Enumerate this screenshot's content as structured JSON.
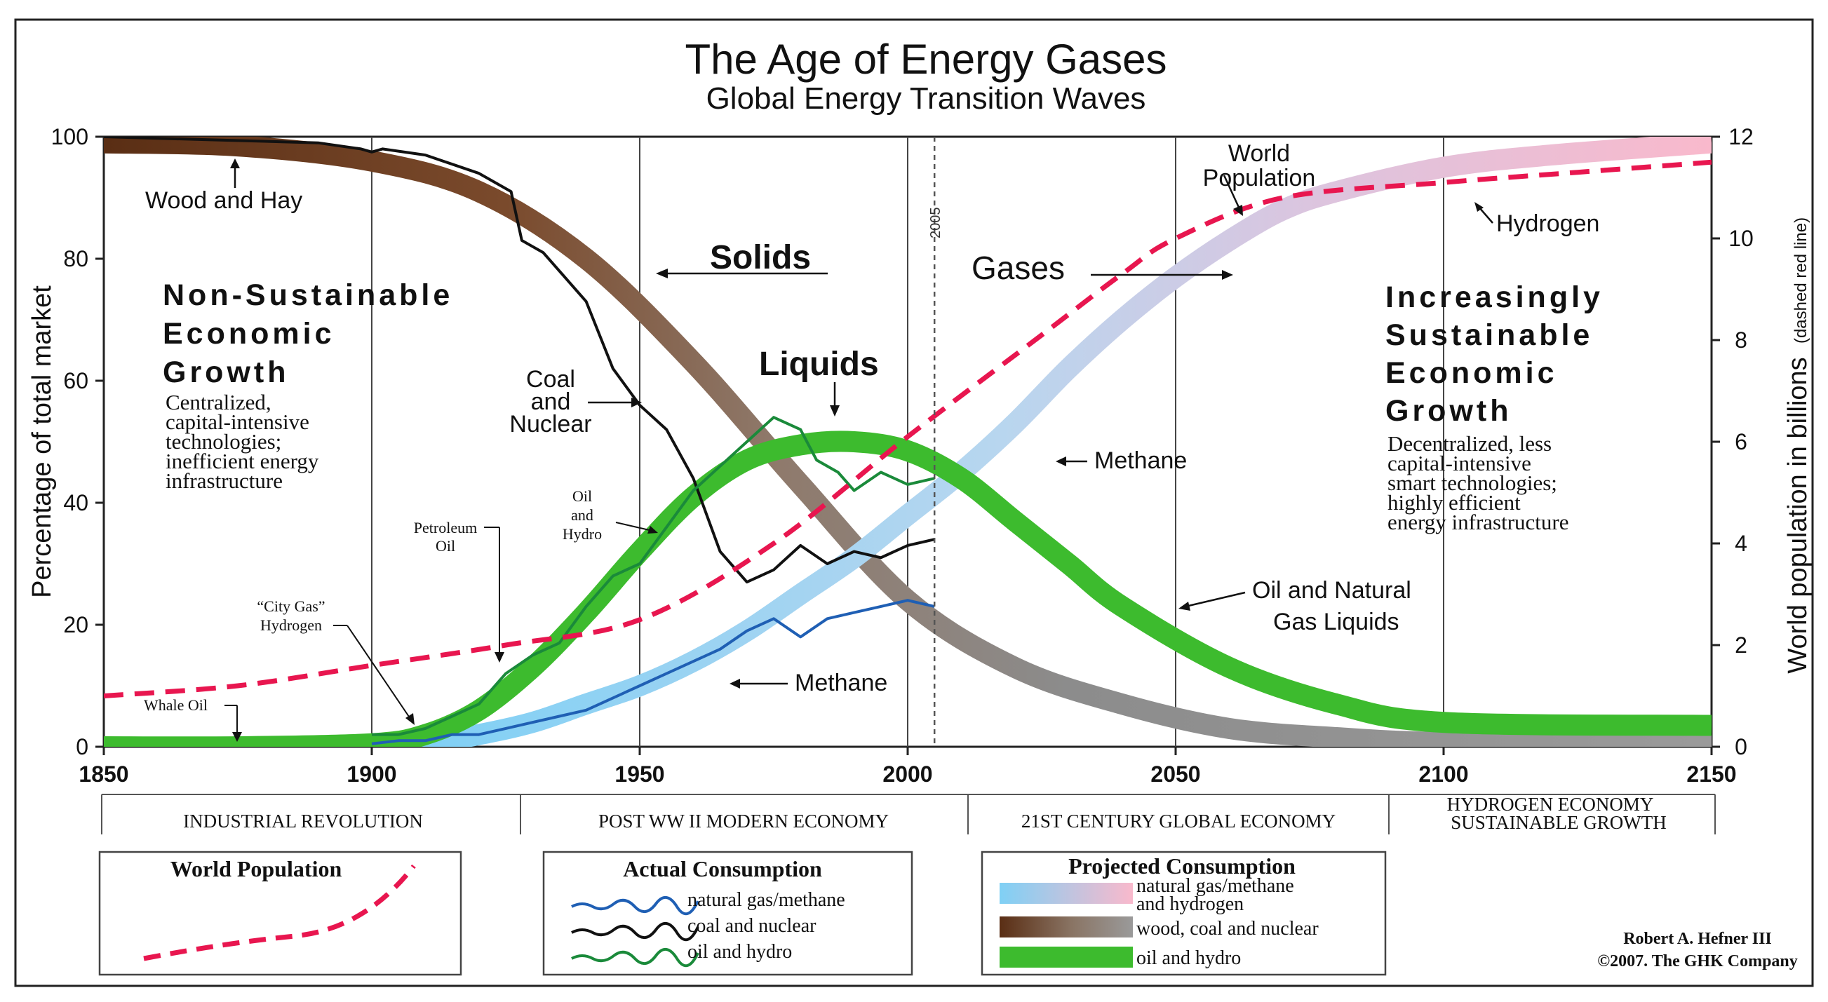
{
  "chart_data": {
    "type": "area",
    "title": "The Age of Energy Gases",
    "subtitle": "Global Energy Transition Waves",
    "ylabel": "Percentage of total market",
    "y2label_main": "World population in billions",
    "y2label_note": "(dashed red line)",
    "xlim": [
      1850,
      2150
    ],
    "ylim": [
      0,
      100
    ],
    "y2lim": [
      0,
      12
    ],
    "x_ticks": [
      "1850",
      "1900",
      "1950",
      "2000",
      "2050",
      "2100",
      "2150"
    ],
    "y_ticks": [
      "0",
      "20",
      "40",
      "60",
      "80",
      "100"
    ],
    "y2_ticks": [
      "0",
      "2",
      "4",
      "6",
      "8",
      "10",
      "12"
    ],
    "marker_year": 2005,
    "marker_label": "2005",
    "grid": true,
    "projected_series": [
      {
        "name": "wood, coal and nuclear",
        "x": [
          1850,
          1875,
          1900,
          1920,
          1940,
          1960,
          1980,
          2000,
          2020,
          2040,
          2060,
          2080,
          2100,
          2150
        ],
        "values": [
          99,
          98.5,
          96,
          91,
          80,
          63,
          43,
          24,
          13,
          7,
          3,
          1.5,
          0.7,
          0.2
        ]
      },
      {
        "name": "oil and hydro",
        "x": [
          1850,
          1875,
          1900,
          1910,
          1920,
          1930,
          1940,
          1950,
          1960,
          1970,
          1980,
          1990,
          2000,
          2010,
          2020,
          2030,
          2040,
          2060,
          2080,
          2100,
          2150
        ],
        "values": [
          0,
          0,
          0.5,
          2,
          6,
          13,
          22,
          32,
          41,
          47,
          49.5,
          50,
          48.5,
          44,
          37,
          30,
          23,
          13,
          7,
          4,
          3.5
        ]
      },
      {
        "name": "natural gas/methane and hydrogen",
        "x": [
          1900,
          1910,
          1920,
          1930,
          1940,
          1950,
          1960,
          1970,
          1980,
          1990,
          2000,
          2010,
          2020,
          2030,
          2040,
          2050,
          2060,
          2070,
          2080,
          2100,
          2120,
          2150
        ],
        "values": [
          0,
          0.5,
          2,
          4,
          7,
          10,
          14,
          19,
          25,
          31,
          38,
          45,
          53,
          62,
          70,
          77,
          83,
          88,
          91,
          95,
          97,
          99
        ]
      }
    ],
    "actual_series": [
      {
        "name": "coal and nuclear",
        "x": [
          1850,
          1870,
          1890,
          1898,
          1900,
          1902,
          1910,
          1920,
          1926,
          1928,
          1932,
          1940,
          1945,
          1950,
          1955,
          1960,
          1965,
          1970,
          1975,
          1980,
          1985,
          1990,
          1995,
          2000,
          2005
        ],
        "values": [
          100,
          99.5,
          99,
          98,
          97.5,
          98,
          97,
          94,
          91,
          83,
          81,
          73,
          62,
          56,
          52,
          44,
          32,
          27,
          29,
          33,
          30,
          32,
          31,
          33,
          34
        ]
      },
      {
        "name": "oil and hydro",
        "x": [
          1900,
          1905,
          1910,
          1915,
          1920,
          1925,
          1930,
          1935,
          1940,
          1945,
          1950,
          1955,
          1960,
          1965,
          1970,
          1975,
          1980,
          1983,
          1987,
          1990,
          1995,
          2000,
          2005
        ],
        "values": [
          2,
          2,
          3,
          5,
          7,
          12,
          15,
          17,
          23,
          28,
          30,
          36,
          42,
          46,
          50,
          54,
          52,
          47,
          45,
          42,
          45,
          43,
          44
        ]
      },
      {
        "name": "natural gas/methane",
        "x": [
          1900,
          1905,
          1910,
          1915,
          1920,
          1925,
          1930,
          1935,
          1940,
          1945,
          1950,
          1955,
          1960,
          1965,
          1970,
          1975,
          1980,
          1985,
          1990,
          1995,
          2000,
          2005
        ],
        "values": [
          0.5,
          1,
          1,
          2,
          2,
          3,
          4,
          5,
          6,
          8,
          10,
          12,
          14,
          16,
          19,
          21,
          18,
          21,
          22,
          23,
          24,
          23
        ]
      }
    ],
    "population": {
      "name": "World Population",
      "x": [
        1850,
        1875,
        1900,
        1925,
        1950,
        1975,
        2000,
        2025,
        2040,
        2050,
        2070,
        2100,
        2125,
        2150
      ],
      "values": [
        1.0,
        1.2,
        1.6,
        2.0,
        2.5,
        4.0,
        6.1,
        8.1,
        9.3,
        10.0,
        10.8,
        11.1,
        11.3,
        11.5
      ]
    }
  },
  "annotations": {
    "wood_hay": "Wood and Hay",
    "solids": "Solids",
    "gases": "Gases",
    "liquids": "Liquids",
    "world_population_1": "World",
    "world_population_2": "Population",
    "hydrogen_top": "Hydrogen",
    "coal_1": "Coal",
    "coal_2": "and",
    "coal_3": "Nuclear",
    "methane_right": "Methane",
    "methane_low": "Methane",
    "oil_ngl_1": "Oil and Natural",
    "oil_ngl_2": "Gas Liquids",
    "oil_hydro_1": "Oil",
    "oil_hydro_2": "and",
    "oil_hydro_3": "Hydro",
    "petroleum_1": "Petroleum",
    "petroleum_2": "Oil",
    "city_gas_1": "“City Gas”",
    "city_gas_2": "Hydrogen",
    "whale_oil": "Whale Oil",
    "left_head_1": "Non-Sustainable",
    "left_head_2": "Economic",
    "left_head_3": "Growth",
    "left_body_1": "Centralized,",
    "left_body_2": "capital-intensive",
    "left_body_3": "technologies;",
    "left_body_4": "inefficient energy",
    "left_body_5": "infrastructure",
    "right_head_1": "Increasingly",
    "right_head_2": "Sustainable",
    "right_head_3": "Economic",
    "right_head_4": "Growth",
    "right_body_1": "Decentralized, less",
    "right_body_2": "capital-intensive",
    "right_body_3": "smart technologies;",
    "right_body_4": "highly efficient",
    "right_body_5": "energy infrastructure"
  },
  "eras": [
    "INDUSTRIAL REVOLUTION",
    "POST WW II MODERN ECONOMY",
    "21ST CENTURY GLOBAL ECONOMY",
    "HYDROGEN ECONOMY",
    "SUSTAINABLE GROWTH"
  ],
  "legend": {
    "population_title": "World Population",
    "actual_title": "Actual Consumption",
    "actual_gas": "natural gas/methane",
    "actual_coal": "coal and nuclear",
    "actual_oil": "oil and hydro",
    "projected_title": "Projected Consumption",
    "projected_gas_1": "natural gas/methane",
    "projected_gas_2": "and hydrogen",
    "projected_coal": "wood, coal and nuclear",
    "projected_oil": "oil and hydro"
  },
  "credit": {
    "line1": "Robert A. Hefner III",
    "line2": "©2007. The GHK Company"
  },
  "colors": {
    "population": "#e8164f",
    "actual_gas": "#1f5fb4",
    "actual_coal": "#111111",
    "actual_oil": "#1a8a3a",
    "projected_oil": "#3dbb2e",
    "wood_brown": "#6e4023",
    "coal_gray": "#8c8c8c",
    "gas_blue": "#8fd3f2",
    "hydrogen_pink": "#f7b8cc"
  }
}
